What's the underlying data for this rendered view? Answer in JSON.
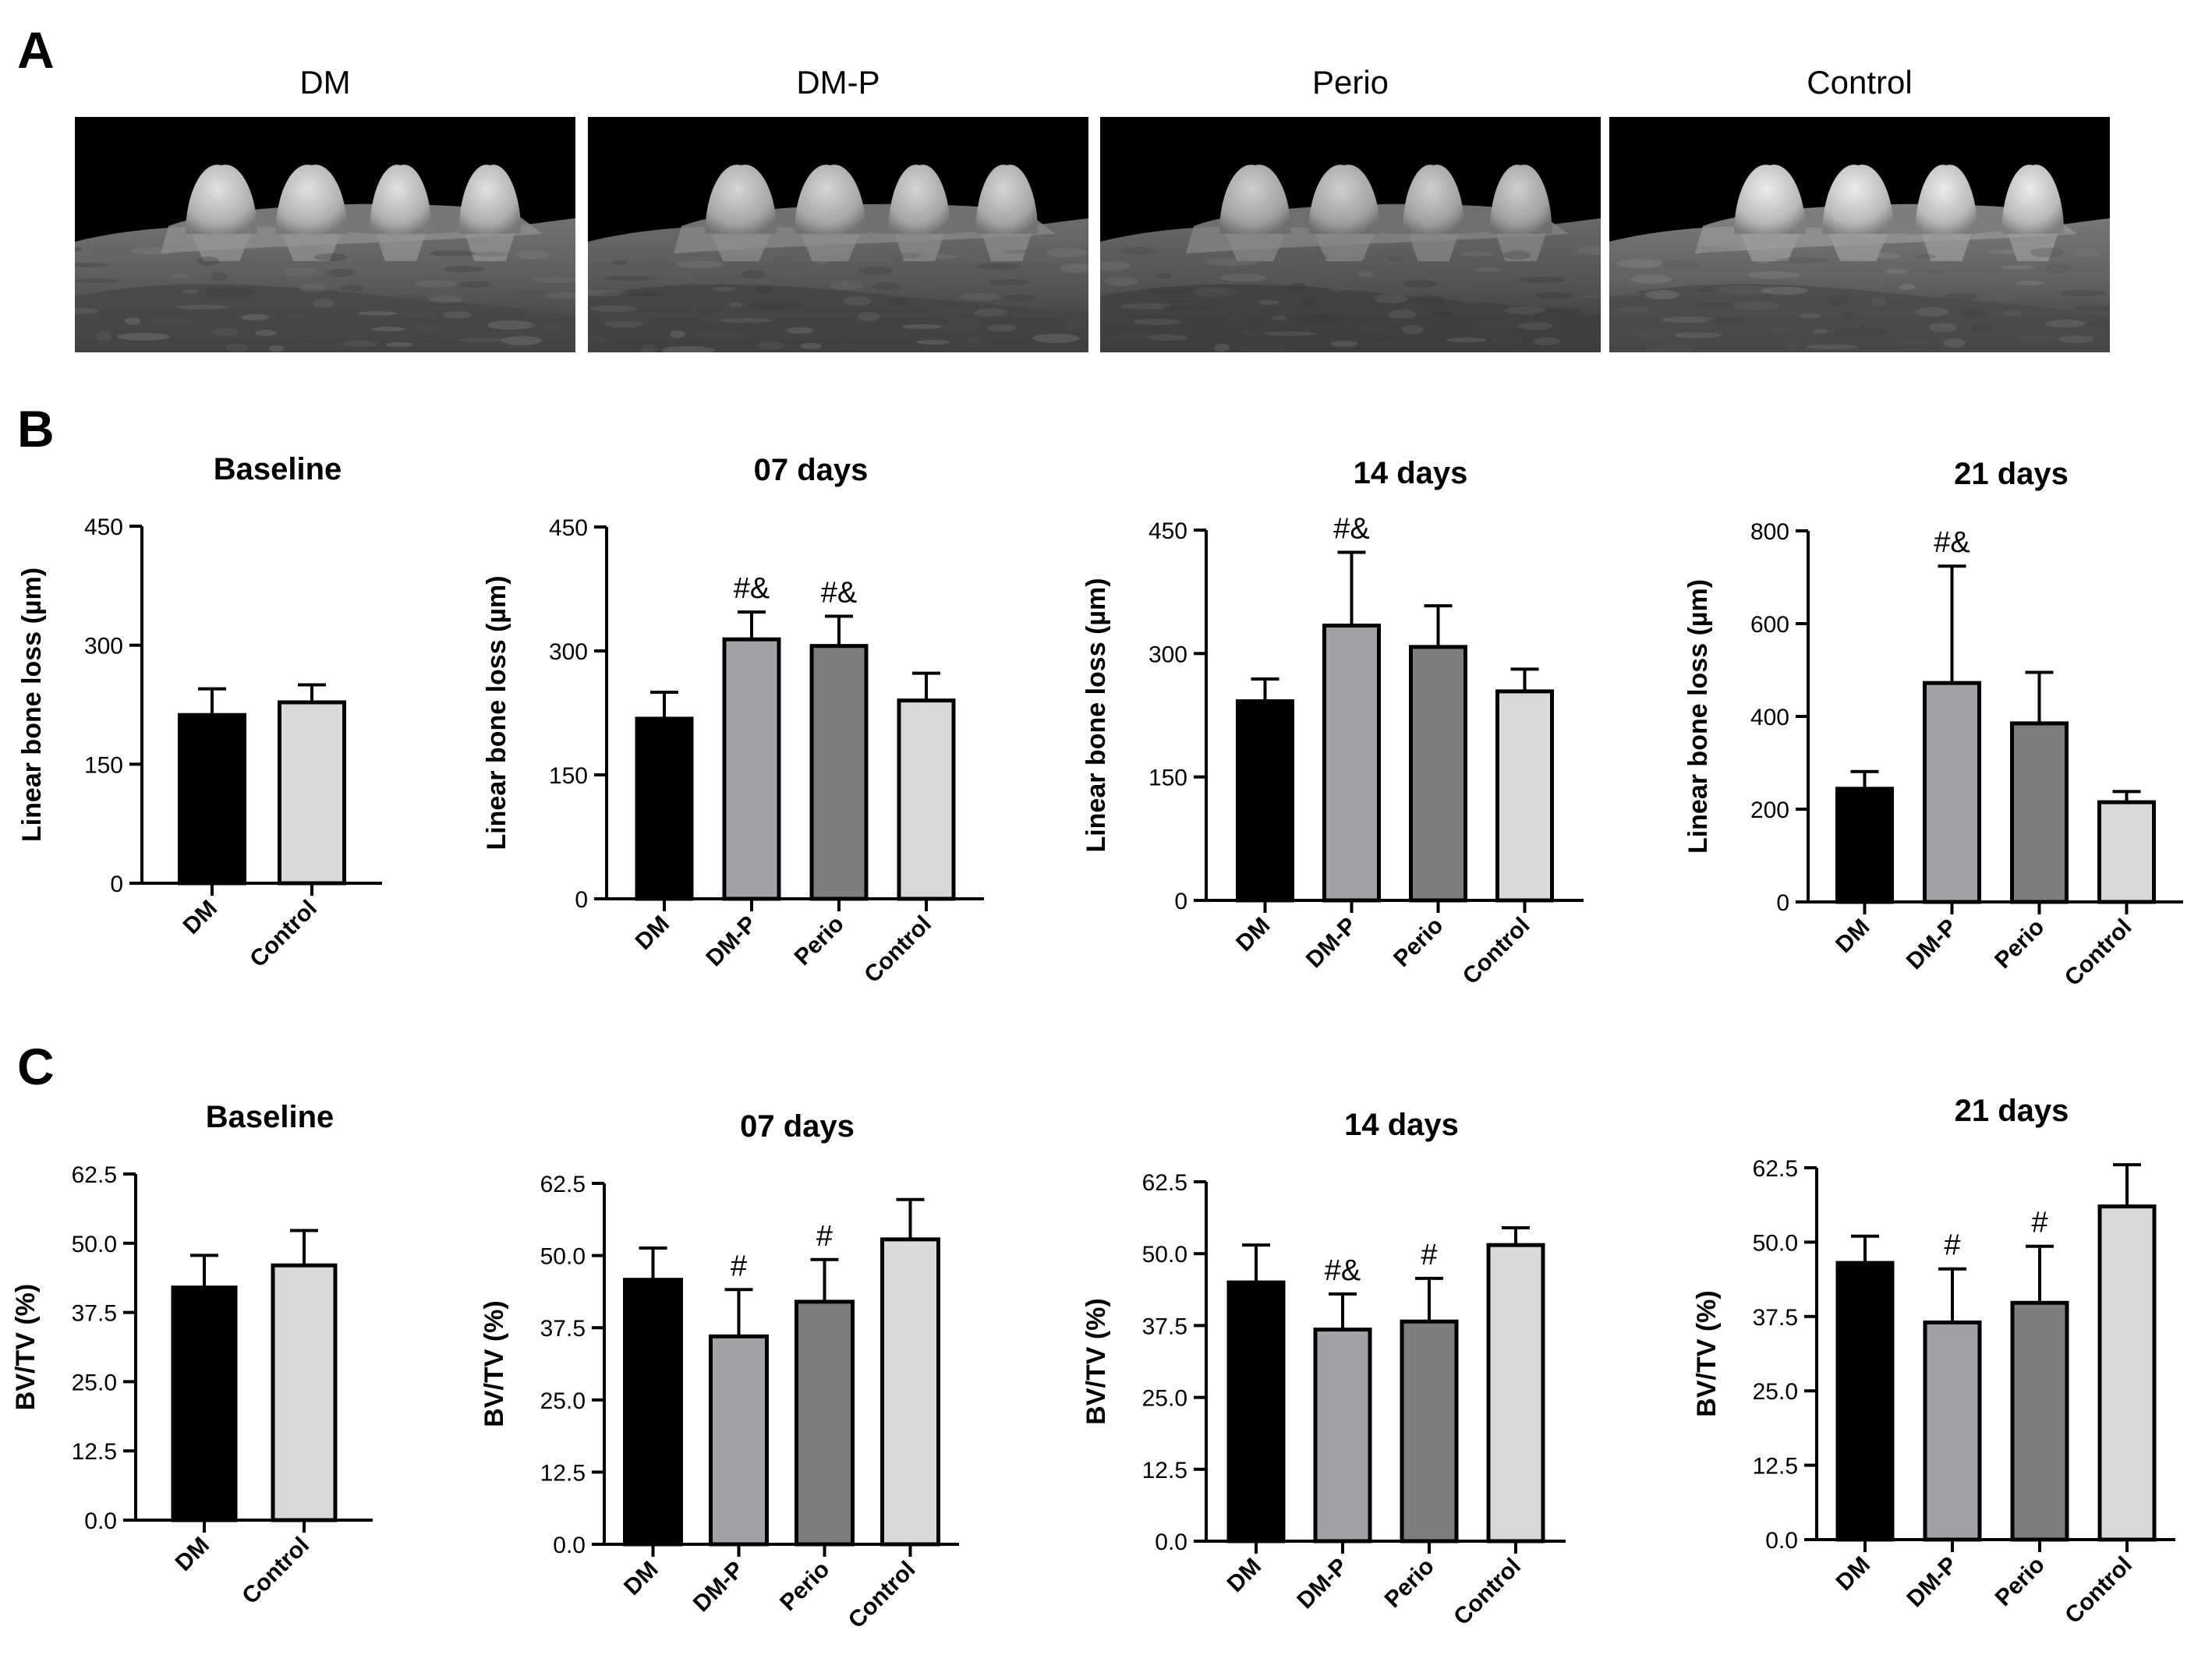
{
  "panels": {
    "A": {
      "letter": "A",
      "images": [
        {
          "label": "DM",
          "teeth": [
            -3.5,
            -2.2,
            -1.0,
            0.2
          ],
          "bright": 1.0
        },
        {
          "label": "DM-P",
          "teeth": [
            -2.8,
            -1.6,
            -0.4,
            0.6
          ],
          "bright": 0.95
        },
        {
          "label": "Perio",
          "teeth": [
            -2.6,
            -1.4,
            -0.2,
            0.8
          ],
          "bright": 0.92
        },
        {
          "label": "Control",
          "teeth": [
            -2.0,
            -0.9,
            0.2,
            1.1
          ],
          "bright": 1.05
        }
      ]
    },
    "B": {
      "letter": "B"
    },
    "C": {
      "letter": "C"
    }
  },
  "chart_data": [
    {
      "panel": "B",
      "type": "bar",
      "title": "Baseline",
      "ylabel": "Linear bone loss (µm)",
      "ylim": [
        0,
        450
      ],
      "yticks": [
        "0",
        "150",
        "300",
        "450"
      ],
      "categories": [
        "DM",
        "Control"
      ],
      "values": [
        212,
        228
      ],
      "errors": [
        33,
        22
      ],
      "annotations": [
        "",
        ""
      ]
    },
    {
      "panel": "B",
      "type": "bar",
      "title": "07 days",
      "ylabel": "Linear bone loss (µm)",
      "ylim": [
        0,
        450
      ],
      "yticks": [
        "0",
        "150",
        "300",
        "450"
      ],
      "categories": [
        "DM",
        "DM-P",
        "Perio",
        "Control"
      ],
      "values": [
        218,
        314,
        306,
        240
      ],
      "errors": [
        32,
        33,
        36,
        33
      ],
      "annotations": [
        "",
        "#&",
        "#&",
        ""
      ]
    },
    {
      "panel": "B",
      "type": "bar",
      "title": "14 days",
      "ylabel": "Linear bone loss (µm)",
      "ylim": [
        0,
        450
      ],
      "yticks": [
        "0",
        "150",
        "300",
        "450"
      ],
      "categories": [
        "DM",
        "DM-P",
        "Perio",
        "Control"
      ],
      "values": [
        242,
        334,
        308,
        254
      ],
      "errors": [
        27,
        89,
        50,
        27
      ],
      "annotations": [
        "",
        "#&",
        "",
        ""
      ]
    },
    {
      "panel": "B",
      "type": "bar",
      "title": "21 days",
      "ylabel": "Linear bone loss (µm)",
      "ylim": [
        0,
        800
      ],
      "yticks": [
        "0",
        "200",
        "400",
        "600",
        "800"
      ],
      "categories": [
        "DM",
        "DM-P",
        "Perio",
        "Control"
      ],
      "values": [
        244,
        472,
        385,
        215
      ],
      "errors": [
        37,
        252,
        110,
        23
      ],
      "annotations": [
        "",
        "#&",
        "",
        ""
      ]
    },
    {
      "panel": "C",
      "type": "bar",
      "title": "Baseline",
      "ylabel": "BV/TV (%)",
      "ylim": [
        0,
        62.5
      ],
      "yticks": [
        "0.0",
        "12.5",
        "25.0",
        "37.5",
        "50.0",
        "62.5"
      ],
      "categories": [
        "DM",
        "Control"
      ],
      "values": [
        42.0,
        46.0
      ],
      "errors": [
        5.8,
        6.3
      ],
      "annotations": [
        "",
        ""
      ]
    },
    {
      "panel": "C",
      "type": "bar",
      "title": "07 days",
      "ylabel": "BV/TV (%)",
      "ylim": [
        0,
        62.5
      ],
      "yticks": [
        "0.0",
        "12.5",
        "25.0",
        "37.5",
        "50.0",
        "62.5"
      ],
      "categories": [
        "DM",
        "DM-P",
        "Perio",
        "Control"
      ],
      "values": [
        45.8,
        36.0,
        42.0,
        52.8
      ],
      "errors": [
        5.5,
        8.1,
        7.3,
        6.9
      ],
      "annotations": [
        "",
        "#",
        "#",
        ""
      ]
    },
    {
      "panel": "C",
      "type": "bar",
      "title": "14 days",
      "ylabel": "BV/TV (%)",
      "ylim": [
        0,
        62.5
      ],
      "yticks": [
        "0.0",
        "12.5",
        "25.0",
        "37.5",
        "50.0",
        "62.5"
      ],
      "categories": [
        "DM",
        "DM-P",
        "Perio",
        "Control"
      ],
      "values": [
        45.0,
        36.8,
        38.2,
        51.5
      ],
      "errors": [
        6.5,
        6.2,
        7.5,
        3.0
      ],
      "annotations": [
        "",
        "#&",
        "#",
        ""
      ]
    },
    {
      "panel": "C",
      "type": "bar",
      "title": "21 days",
      "ylabel": "BV/TV (%)",
      "ylim": [
        0,
        62.5
      ],
      "yticks": [
        "0.0",
        "12.5",
        "25.0",
        "37.5",
        "50.0",
        "62.5"
      ],
      "categories": [
        "DM",
        "DM-P",
        "Perio",
        "Control"
      ],
      "values": [
        46.5,
        36.5,
        39.8,
        56.0
      ],
      "errors": [
        4.5,
        9.0,
        9.5,
        7.0
      ],
      "annotations": [
        "",
        "#",
        "#",
        ""
      ]
    }
  ],
  "colors": {
    "DM": "#000000",
    "DM-P": "#a1a1a6",
    "Perio": "#7d7d7d",
    "Control": "#d9d9d9",
    "outline": "#000000",
    "background": "#ffffff"
  }
}
